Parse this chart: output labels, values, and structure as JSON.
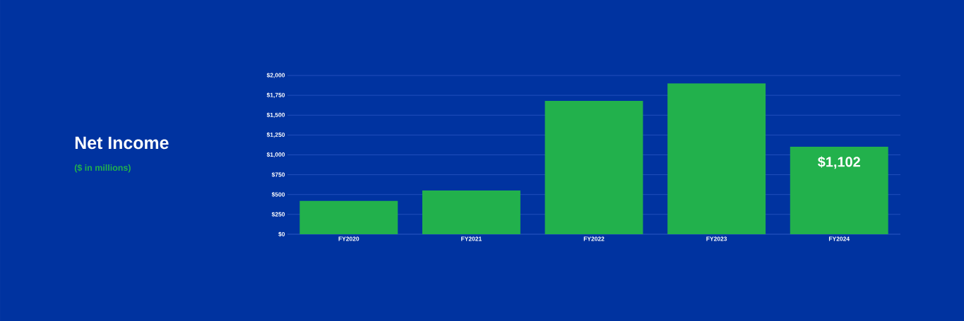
{
  "chart_data": {
    "type": "bar",
    "title": "Net Income",
    "subtitle": "($ in millions)",
    "categories": [
      "FY2020",
      "FY2021",
      "FY2022",
      "FY2023",
      "FY2024"
    ],
    "values": [
      420,
      550,
      1680,
      1900,
      1102
    ],
    "value_labels": [
      null,
      null,
      null,
      null,
      "$1,102"
    ],
    "color": "#22b14c",
    "ylim": [
      0,
      2000
    ],
    "yticks": [
      {
        "value": 0,
        "label": "$0"
      },
      {
        "value": 250,
        "label": "$250"
      },
      {
        "value": 500,
        "label": "$500"
      },
      {
        "value": 750,
        "label": "$750"
      },
      {
        "value": 1000,
        "label": "$1,000"
      },
      {
        "value": 1250,
        "label": "$1,250"
      },
      {
        "value": 1500,
        "label": "$1,500"
      },
      {
        "value": 1750,
        "label": "$1,750"
      },
      {
        "value": 2000,
        "label": "$2,000"
      }
    ],
    "grid": "y"
  }
}
